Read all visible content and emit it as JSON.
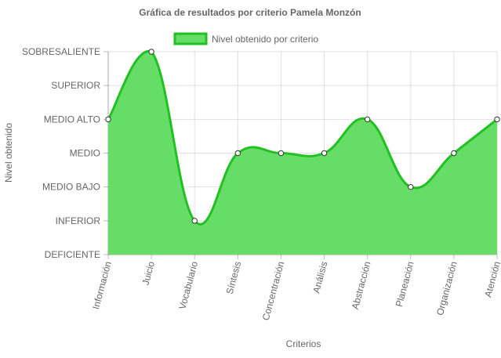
{
  "chart_data": {
    "type": "area",
    "title": "Gráfica de resultados por criterio Pamela Monzón",
    "xlabel": "Criterios",
    "ylabel": "Nivel obtenido",
    "categories": [
      "Información",
      "Juicio",
      "Vocabulario",
      "Síntesis",
      "Concentración",
      "Análisis",
      "Abstracción",
      "Planeación",
      "Organización",
      "Atención"
    ],
    "y_levels": [
      "DEFICIENTE",
      "INFERIOR",
      "MEDIO BAJO",
      "MEDIO",
      "MEDIO ALTO",
      "SUPERIOR",
      "SOBRESALIENTE"
    ],
    "series": [
      {
        "name": "Nivel obtenido por criterio",
        "values": [
          4,
          6,
          1,
          3,
          3,
          3,
          4,
          2,
          3,
          4
        ],
        "levels": [
          "MEDIO ALTO",
          "SOBRESALIENTE",
          "INFERIOR",
          "MEDIO",
          "MEDIO",
          "MEDIO",
          "MEDIO ALTO",
          "MEDIO BAJO",
          "MEDIO",
          "MEDIO ALTO"
        ],
        "fill_color": "#66dd66",
        "line_color": "#22c022"
      }
    ],
    "ylim": [
      0,
      6
    ],
    "grid": true,
    "legend_position": "top"
  }
}
